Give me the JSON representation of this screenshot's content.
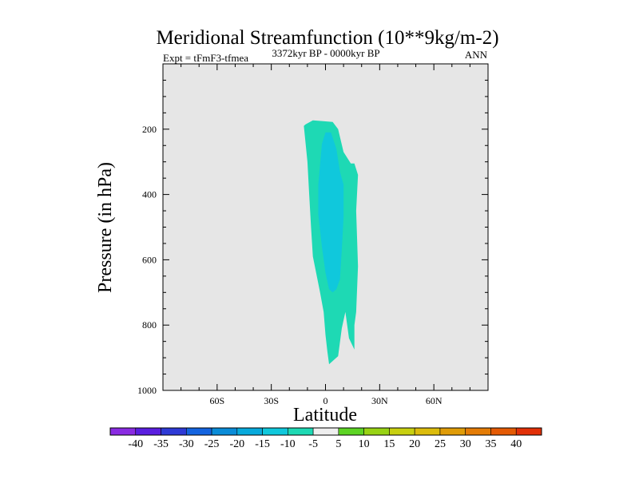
{
  "chart_data": {
    "type": "contour",
    "title": "Meridional Streamfunction (10**9kg/m-2)",
    "subtitle_left": "Expt = tFmF3-tfmea",
    "subtitle_center": "3372kyr BP - 0000kyr BP",
    "subtitle_right": "ANN",
    "xlabel": "Latitude",
    "ylabel": "Pressure (in hPa)",
    "xlim": [
      -90,
      90
    ],
    "ylim": [
      0,
      1000
    ],
    "y_inverted": true,
    "x_ticks": [
      {
        "value": -60,
        "label": "60S"
      },
      {
        "value": -30,
        "label": "30S"
      },
      {
        "value": 0,
        "label": "0"
      },
      {
        "value": 30,
        "label": "30N"
      },
      {
        "value": 60,
        "label": "60N"
      }
    ],
    "y_ticks": [
      {
        "value": 200,
        "label": "200"
      },
      {
        "value": 400,
        "label": "400"
      },
      {
        "value": 600,
        "label": "600"
      },
      {
        "value": 800,
        "label": "800"
      },
      {
        "value": 1000,
        "label": "1000"
      }
    ],
    "plot_background": "#e6e6e6",
    "contours": [
      {
        "name": "-10 to -5",
        "color": "#1ed9b4",
        "points": [
          [
            -11,
            185
          ],
          [
            -7,
            173
          ],
          [
            -2,
            175
          ],
          [
            4,
            178
          ],
          [
            7,
            200
          ],
          [
            10,
            270
          ],
          [
            14,
            305
          ],
          [
            16,
            305
          ],
          [
            18,
            340
          ],
          [
            17,
            450
          ],
          [
            18,
            620
          ],
          [
            17,
            760
          ],
          [
            16,
            800
          ],
          [
            16,
            875
          ],
          [
            13,
            840
          ],
          [
            11,
            760
          ],
          [
            9,
            810
          ],
          [
            7,
            895
          ],
          [
            5,
            905
          ],
          [
            2,
            920
          ],
          [
            1,
            880
          ],
          [
            0,
            830
          ],
          [
            -1,
            760
          ],
          [
            -3,
            700
          ],
          [
            -7,
            590
          ],
          [
            -8,
            500
          ],
          [
            -9,
            400
          ],
          [
            -10,
            300
          ],
          [
            -12,
            190
          ]
        ]
      },
      {
        "name": "-15 to -10",
        "color": "#10c8dc",
        "points": [
          [
            -2,
            245
          ],
          [
            0,
            210
          ],
          [
            3,
            210
          ],
          [
            6,
            260
          ],
          [
            8,
            330
          ],
          [
            10,
            370
          ],
          [
            10,
            470
          ],
          [
            9,
            570
          ],
          [
            8,
            660
          ],
          [
            6,
            690
          ],
          [
            4,
            700
          ],
          [
            2,
            690
          ],
          [
            0,
            640
          ],
          [
            -2,
            560
          ],
          [
            -4,
            460
          ],
          [
            -4,
            370
          ]
        ]
      }
    ],
    "colorbar": {
      "labels": [
        "-40",
        "-35",
        "-30",
        "-25",
        "-20",
        "-15",
        "-10",
        "-5",
        "5",
        "10",
        "15",
        "20",
        "25",
        "30",
        "35",
        "40"
      ],
      "colors": [
        "#8a2be2",
        "#5a1ee0",
        "#2e3ad6",
        "#1464e0",
        "#0a8cd8",
        "#08aadc",
        "#10c8dc",
        "#1ed9b4",
        "#eeeeee",
        "#5dd424",
        "#98d314",
        "#c8d010",
        "#dcbc0c",
        "#e09c08",
        "#e47c06",
        "#e45a04",
        "#e23008"
      ]
    }
  }
}
